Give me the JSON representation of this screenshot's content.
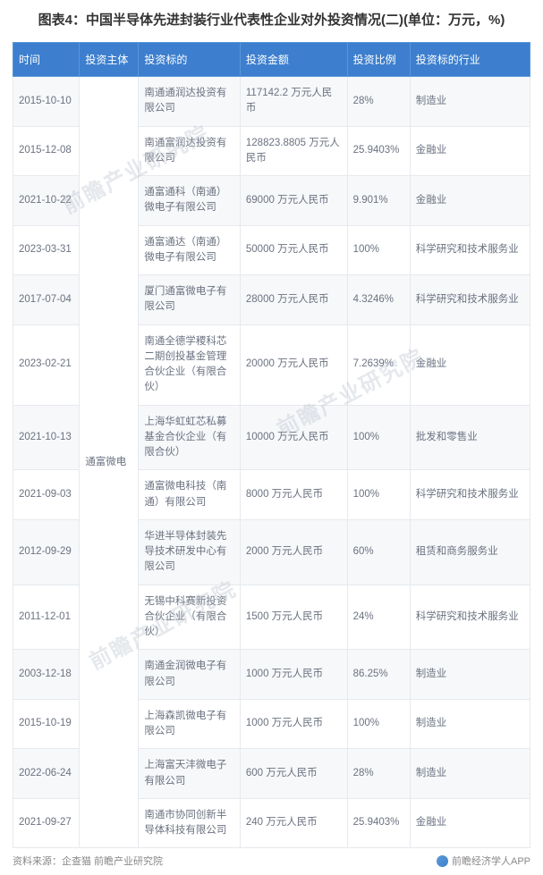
{
  "title": "图表4：中国半导体先进封装行业代表性企业对外投资情况(二)(单位：万元，%)",
  "columns": [
    "时间",
    "投资主体",
    "投资标的",
    "投资金额",
    "投资比例",
    "投资标的行业"
  ],
  "subject": "通富微电",
  "rows": [
    {
      "time": "2015-10-10",
      "target": "南通通润达投资有限公司",
      "amount": "117142.2 万元人民币",
      "ratio": "28%",
      "industry": "制造业"
    },
    {
      "time": "2015-12-08",
      "target": "南通富润达投资有限公司",
      "amount": "128823.8805 万元人民币",
      "ratio": "25.9403%",
      "industry": "金融业"
    },
    {
      "time": "2021-10-22",
      "target": "通富通科（南通）微电子有限公司",
      "amount": "69000 万元人民币",
      "ratio": "9.901%",
      "industry": "金融业"
    },
    {
      "time": "2023-03-31",
      "target": "通富通达（南通）微电子有限公司",
      "amount": "50000 万元人民币",
      "ratio": "100%",
      "industry": "科学研究和技术服务业"
    },
    {
      "time": "2017-07-04",
      "target": "厦门通富微电子有限公司",
      "amount": "28000 万元人民币",
      "ratio": "4.3246%",
      "industry": "科学研究和技术服务业"
    },
    {
      "time": "2023-02-21",
      "target": "南通全德学稷科芯二期创投基金管理合伙企业（有限合伙）",
      "amount": "20000 万元人民币",
      "ratio": "7.2639%",
      "industry": "金融业"
    },
    {
      "time": "2021-10-13",
      "target": "上海华虹虹芯私募基金合伙企业（有限合伙）",
      "amount": "10000 万元人民币",
      "ratio": "100%",
      "industry": "批发和零售业"
    },
    {
      "time": "2021-09-03",
      "target": "通富微电科技（南通）有限公司",
      "amount": "8000 万元人民币",
      "ratio": "100%",
      "industry": "科学研究和技术服务业"
    },
    {
      "time": "2012-09-29",
      "target": "华进半导体封装先导技术研发中心有限公司",
      "amount": "2000 万元人民币",
      "ratio": "60%",
      "industry": "租赁和商务服务业"
    },
    {
      "time": "2011-12-01",
      "target": "无锡中科赛新投资合伙企业（有限合伙）",
      "amount": "1500 万元人民币",
      "ratio": "24%",
      "industry": "科学研究和技术服务业"
    },
    {
      "time": "2003-12-18",
      "target": "南通金润微电子有限公司",
      "amount": "1000 万元人民币",
      "ratio": "86.25%",
      "industry": "制造业"
    },
    {
      "time": "2015-10-19",
      "target": "上海森凯微电子有限公司",
      "amount": "1000 万元人民币",
      "ratio": "100%",
      "industry": "制造业"
    },
    {
      "time": "2022-06-24",
      "target": "上海富天沣微电子有限公司",
      "amount": "600 万元人民币",
      "ratio": "28%",
      "industry": "制造业"
    },
    {
      "time": "2021-09-27",
      "target": "南通市协同创新半导体科技有限公司",
      "amount": "240 万元人民币",
      "ratio": "25.9403%",
      "industry": "金融业"
    }
  ],
  "source": "资料来源：企查猫 前瞻产业研究院",
  "app_credit": "前瞻经济学人APP",
  "watermark": "前瞻产业研究院",
  "colors": {
    "header_bg": "#3d7fce",
    "header_text": "#ffffff",
    "row_alt_bg": "#f7f8fa",
    "border": "#e6e9ed",
    "text": "#6b7280"
  }
}
